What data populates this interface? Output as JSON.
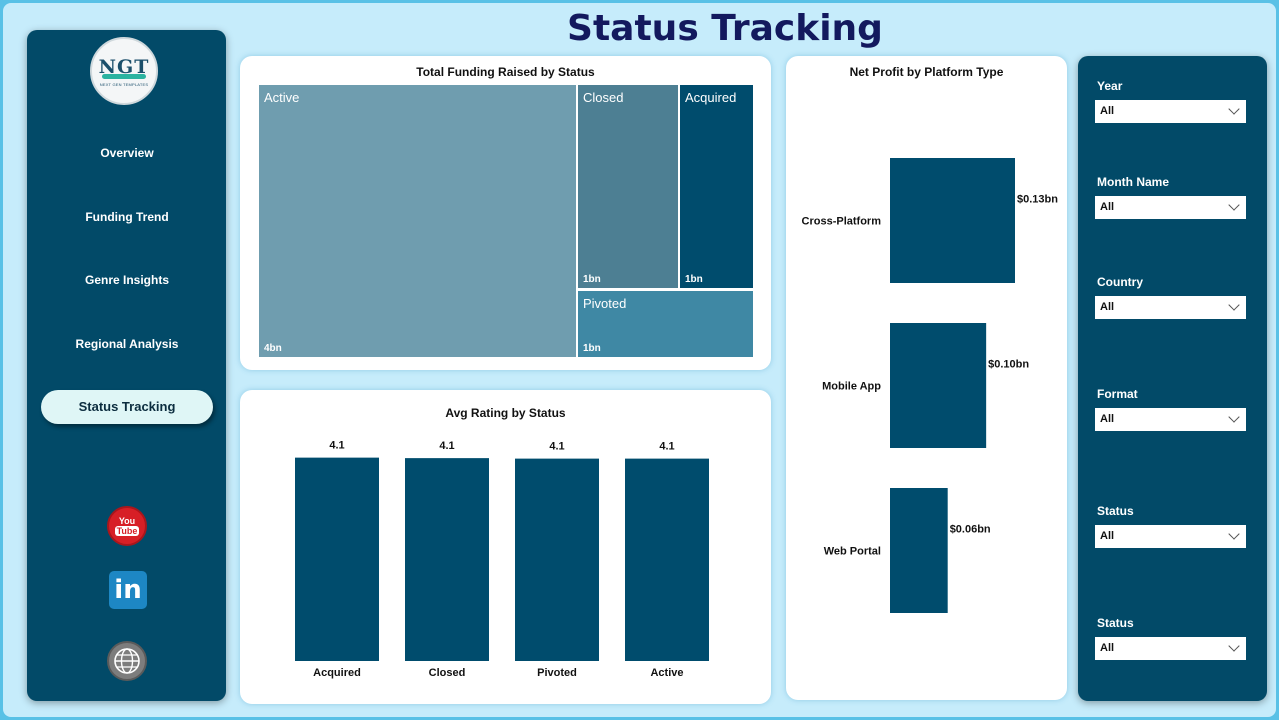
{
  "page": {
    "title": "Status Tracking"
  },
  "logo": {
    "mark": "NGT",
    "subtitle": "NEXT GEN TEMPLATES"
  },
  "sidebar": {
    "items": [
      {
        "label": "Overview",
        "active": false
      },
      {
        "label": "Funding Trend",
        "active": false
      },
      {
        "label": "Genre Insights",
        "active": false
      },
      {
        "label": "Regional Analysis",
        "active": false
      },
      {
        "label": "Status Tracking",
        "active": true
      }
    ],
    "social": [
      {
        "icon": "youtube-icon",
        "text": "You",
        "text2": "Tube"
      },
      {
        "icon": "linkedin-icon",
        "text": "in"
      },
      {
        "icon": "globe-icon"
      }
    ]
  },
  "colors": {
    "navy": "#024a68",
    "bar": "#004c6d",
    "treemap_active": "#6f9daf",
    "treemap_closed": "#4d7f93",
    "treemap_acquired": "#004c6d",
    "treemap_pivoted": "#3f88a4",
    "title": "#13195e"
  },
  "chart_data": [
    {
      "type": "treemap",
      "title": "Total Funding Raised by Status",
      "cells": [
        {
          "label": "Active",
          "value_label": "4bn"
        },
        {
          "label": "Closed",
          "value_label": "1bn"
        },
        {
          "label": "Acquired",
          "value_label": "1bn"
        },
        {
          "label": "Pivoted",
          "value_label": "1bn"
        }
      ]
    },
    {
      "type": "bar",
      "title": "Avg Rating by Status",
      "categories": [
        "Acquired",
        "Closed",
        "Pivoted",
        "Active"
      ],
      "values": [
        4.12,
        4.11,
        4.1,
        4.1
      ],
      "value_labels": [
        "4.1",
        "4.1",
        "4.1",
        "4.1"
      ],
      "ylim": [
        0,
        4.7
      ]
    },
    {
      "type": "bar",
      "orientation": "horizontal",
      "title": "Net Profit by Platform Type",
      "categories": [
        "Cross-Platform",
        "Mobile App",
        "Web Portal"
      ],
      "values": [
        0.13,
        0.1,
        0.06
      ],
      "value_labels": [
        "$0.13bn",
        "$0.10bn",
        "$0.06bn"
      ],
      "unit": "bn USD"
    }
  ],
  "filters": [
    {
      "label": "Year",
      "value": "All"
    },
    {
      "label": "Month Name",
      "value": "All"
    },
    {
      "label": "Country",
      "value": "All"
    },
    {
      "label": "Format",
      "value": "All"
    },
    {
      "label": "Status",
      "value": "All"
    },
    {
      "label": "Status",
      "value": "All"
    }
  ]
}
